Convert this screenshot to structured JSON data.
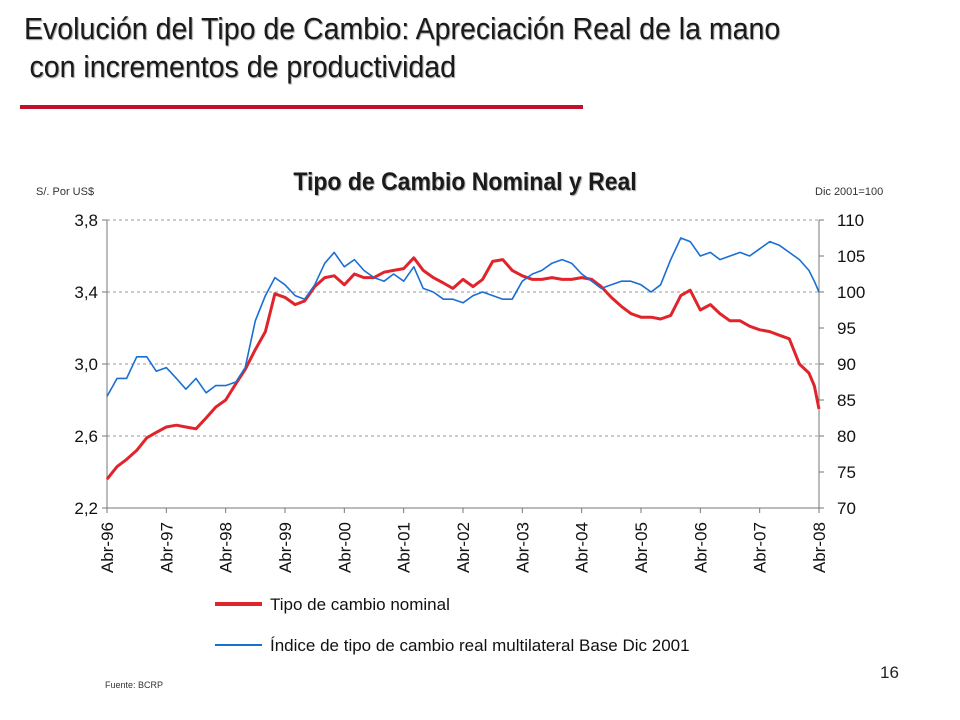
{
  "slide": {
    "title_line1": "Evolución del Tipo de Cambio: Apreciación Real de la mano",
    "title_line2": "con incrementos de productividad",
    "accent_color": "#c0102a",
    "page_number": "16"
  },
  "chart_data": {
    "type": "line",
    "title": "Tipo de Cambio Nominal y Real",
    "left_axis_caption": "S/. Por US$",
    "right_axis_caption": "Dic 2001=100",
    "source": "Fuente: BCRP",
    "ylim_left": [
      2.2,
      3.8
    ],
    "ylim_right": [
      70,
      110
    ],
    "left_ticks": [
      "3,8",
      "3,4",
      "3,0",
      "2,6",
      "2,2"
    ],
    "left_tick_values": [
      3.8,
      3.4,
      3.0,
      2.6,
      2.2
    ],
    "right_ticks": [
      "110",
      "105",
      "100",
      "95",
      "90",
      "85",
      "80",
      "75",
      "70"
    ],
    "right_tick_values": [
      110,
      105,
      100,
      95,
      90,
      85,
      80,
      75,
      70
    ],
    "x_ticks": [
      "Abr-96",
      "Abr-97",
      "Abr-98",
      "Abr-99",
      "Abr-00",
      "Abr-01",
      "Abr-02",
      "Abr-03",
      "Abr-04",
      "Abr-05",
      "Abr-06",
      "Abr-07",
      "Abr-08"
    ],
    "x_range_years": [
      1996.25,
      2008.25
    ],
    "grid": "horizontal dashed (left axis)",
    "legend_position": "bottom",
    "series": [
      {
        "name": "Tipo de cambio nominal",
        "axis": "left",
        "color": "#e0242c",
        "points": [
          [
            1996.25,
            2.36
          ],
          [
            1996.42,
            2.43
          ],
          [
            1996.58,
            2.47
          ],
          [
            1996.75,
            2.52
          ],
          [
            1996.92,
            2.59
          ],
          [
            1997.08,
            2.62
          ],
          [
            1997.25,
            2.65
          ],
          [
            1997.42,
            2.66
          ],
          [
            1997.58,
            2.65
          ],
          [
            1997.75,
            2.64
          ],
          [
            1997.92,
            2.7
          ],
          [
            1998.08,
            2.76
          ],
          [
            1998.25,
            2.8
          ],
          [
            1998.42,
            2.89
          ],
          [
            1998.58,
            2.97
          ],
          [
            1998.75,
            3.08
          ],
          [
            1998.92,
            3.18
          ],
          [
            1999.08,
            3.39
          ],
          [
            1999.25,
            3.37
          ],
          [
            1999.42,
            3.33
          ],
          [
            1999.58,
            3.35
          ],
          [
            1999.75,
            3.43
          ],
          [
            1999.92,
            3.48
          ],
          [
            2000.08,
            3.49
          ],
          [
            2000.25,
            3.44
          ],
          [
            2000.42,
            3.5
          ],
          [
            2000.58,
            3.48
          ],
          [
            2000.75,
            3.48
          ],
          [
            2000.92,
            3.51
          ],
          [
            2001.08,
            3.52
          ],
          [
            2001.25,
            3.53
          ],
          [
            2001.42,
            3.59
          ],
          [
            2001.58,
            3.52
          ],
          [
            2001.75,
            3.48
          ],
          [
            2001.92,
            3.45
          ],
          [
            2002.08,
            3.42
          ],
          [
            2002.25,
            3.47
          ],
          [
            2002.42,
            3.43
          ],
          [
            2002.58,
            3.47
          ],
          [
            2002.75,
            3.57
          ],
          [
            2002.92,
            3.58
          ],
          [
            2003.08,
            3.52
          ],
          [
            2003.25,
            3.49
          ],
          [
            2003.42,
            3.47
          ],
          [
            2003.58,
            3.47
          ],
          [
            2003.75,
            3.48
          ],
          [
            2003.92,
            3.47
          ],
          [
            2004.08,
            3.47
          ],
          [
            2004.25,
            3.48
          ],
          [
            2004.42,
            3.47
          ],
          [
            2004.58,
            3.43
          ],
          [
            2004.75,
            3.37
          ],
          [
            2004.92,
            3.32
          ],
          [
            2005.08,
            3.28
          ],
          [
            2005.25,
            3.26
          ],
          [
            2005.42,
            3.26
          ],
          [
            2005.58,
            3.25
          ],
          [
            2005.75,
            3.27
          ],
          [
            2005.92,
            3.38
          ],
          [
            2006.08,
            3.41
          ],
          [
            2006.25,
            3.3
          ],
          [
            2006.42,
            3.33
          ],
          [
            2006.58,
            3.28
          ],
          [
            2006.75,
            3.24
          ],
          [
            2006.92,
            3.24
          ],
          [
            2007.08,
            3.21
          ],
          [
            2007.25,
            3.19
          ],
          [
            2007.42,
            3.18
          ],
          [
            2007.58,
            3.16
          ],
          [
            2007.75,
            3.14
          ],
          [
            2007.92,
            3.0
          ],
          [
            2008.08,
            2.95
          ],
          [
            2008.17,
            2.88
          ],
          [
            2008.25,
            2.75
          ]
        ]
      },
      {
        "name": "Índice de tipo de cambio real multilateral Base Dic 2001",
        "axis": "right",
        "color": "#1a6fd4",
        "points": [
          [
            1996.25,
            85.5
          ],
          [
            1996.42,
            88.0
          ],
          [
            1996.58,
            88.0
          ],
          [
            1996.75,
            91.0
          ],
          [
            1996.92,
            91.0
          ],
          [
            1997.08,
            89.0
          ],
          [
            1997.25,
            89.5
          ],
          [
            1997.42,
            88.0
          ],
          [
            1997.58,
            86.5
          ],
          [
            1997.75,
            88.0
          ],
          [
            1997.92,
            86.0
          ],
          [
            1998.08,
            87.0
          ],
          [
            1998.25,
            87.0
          ],
          [
            1998.42,
            87.5
          ],
          [
            1998.58,
            89.5
          ],
          [
            1998.75,
            96.0
          ],
          [
            1998.92,
            99.5
          ],
          [
            1999.08,
            102.0
          ],
          [
            1999.25,
            101.0
          ],
          [
            1999.42,
            99.5
          ],
          [
            1999.58,
            99.0
          ],
          [
            1999.75,
            101.0
          ],
          [
            1999.92,
            104.0
          ],
          [
            2000.08,
            105.5
          ],
          [
            2000.25,
            103.5
          ],
          [
            2000.42,
            104.5
          ],
          [
            2000.58,
            103.0
          ],
          [
            2000.75,
            102.0
          ],
          [
            2000.92,
            101.5
          ],
          [
            2001.08,
            102.5
          ],
          [
            2001.25,
            101.5
          ],
          [
            2001.42,
            103.5
          ],
          [
            2001.58,
            100.5
          ],
          [
            2001.75,
            100.0
          ],
          [
            2001.92,
            99.0
          ],
          [
            2002.08,
            99.0
          ],
          [
            2002.25,
            98.5
          ],
          [
            2002.42,
            99.5
          ],
          [
            2002.58,
            100.0
          ],
          [
            2002.75,
            99.5
          ],
          [
            2002.92,
            99.0
          ],
          [
            2003.08,
            99.0
          ],
          [
            2003.25,
            101.5
          ],
          [
            2003.42,
            102.5
          ],
          [
            2003.58,
            103.0
          ],
          [
            2003.75,
            104.0
          ],
          [
            2003.92,
            104.5
          ],
          [
            2004.08,
            104.0
          ],
          [
            2004.25,
            102.5
          ],
          [
            2004.42,
            101.5
          ],
          [
            2004.58,
            100.5
          ],
          [
            2004.75,
            101.0
          ],
          [
            2004.92,
            101.5
          ],
          [
            2005.08,
            101.5
          ],
          [
            2005.25,
            101.0
          ],
          [
            2005.42,
            100.0
          ],
          [
            2005.58,
            101.0
          ],
          [
            2005.75,
            104.5
          ],
          [
            2005.92,
            107.5
          ],
          [
            2006.08,
            107.0
          ],
          [
            2006.25,
            105.0
          ],
          [
            2006.42,
            105.5
          ],
          [
            2006.58,
            104.5
          ],
          [
            2006.75,
            105.0
          ],
          [
            2006.92,
            105.5
          ],
          [
            2007.08,
            105.0
          ],
          [
            2007.25,
            106.0
          ],
          [
            2007.42,
            107.0
          ],
          [
            2007.58,
            106.5
          ],
          [
            2007.75,
            105.5
          ],
          [
            2007.92,
            104.5
          ],
          [
            2008.08,
            103.0
          ],
          [
            2008.17,
            101.5
          ],
          [
            2008.25,
            100.0
          ]
        ]
      }
    ]
  }
}
